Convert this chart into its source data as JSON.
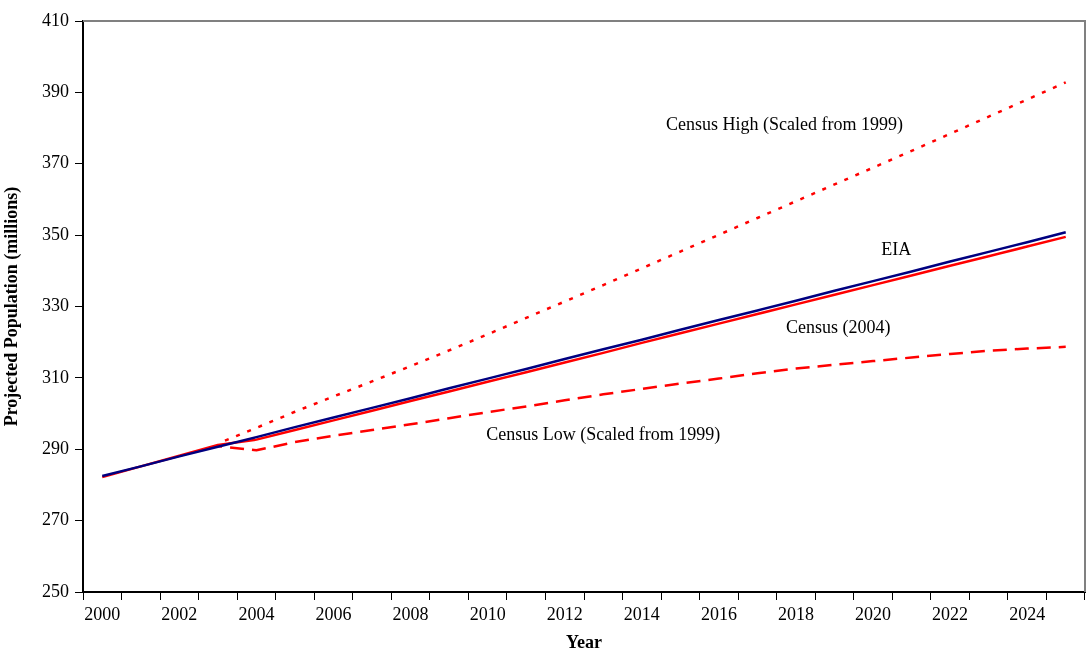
{
  "chart_data": {
    "type": "line",
    "xlabel": "Year",
    "ylabel": "Projected Population (millions)",
    "categories": [
      "2000",
      null,
      "2002",
      null,
      "2004",
      null,
      "2006",
      null,
      "2008",
      null,
      "2010",
      null,
      "2012",
      null,
      "2014",
      null,
      "2016",
      null,
      "2018",
      null,
      "2020",
      null,
      "2022",
      null,
      "2024",
      null
    ],
    "series": [
      {
        "name": "Census High (Scaled from 1999)",
        "color": "#ff0000",
        "line_style": "dotted",
        "values": [
          null,
          null,
          null,
          291.6,
          296.0,
          300.5,
          304.8,
          309.0,
          313.3,
          317.7,
          322.2,
          326.8,
          331.4,
          336.0,
          340.7,
          345.4,
          350.1,
          354.8,
          359.5,
          364.2,
          368.9,
          373.6,
          378.4,
          383.2,
          388.0,
          392.8
        ]
      },
      {
        "name": "EIA",
        "color": "#000080",
        "line_style": "solid",
        "values": [
          282.5,
          285.2,
          288.0,
          290.7,
          293.4,
          296.2,
          298.9,
          301.6,
          304.3,
          307.1,
          309.8,
          312.5,
          315.3,
          318.0,
          320.7,
          323.5,
          326.2,
          328.9,
          331.6,
          334.4,
          337.1,
          339.8,
          342.6,
          345.3,
          348.0,
          350.8
        ]
      },
      {
        "name": "Census (2004)",
        "color": "#ff0000",
        "line_style": "solid",
        "values": [
          282.2,
          285.2,
          288.2,
          291.2,
          292.7,
          295.4,
          298.1,
          300.8,
          303.5,
          306.2,
          308.9,
          311.6,
          314.3,
          317.0,
          319.8,
          322.5,
          325.2,
          327.9,
          330.6,
          333.3,
          336.0,
          338.7,
          341.4,
          344.1,
          346.8,
          349.5
        ]
      },
      {
        "name": "Census Low (Scaled from 1999)",
        "color": "#ff0000",
        "line_style": "dashed",
        "values": [
          null,
          null,
          null,
          290.9,
          289.7,
          292.0,
          293.8,
          295.4,
          297.0,
          298.7,
          300.4,
          302.0,
          303.7,
          305.4,
          306.9,
          308.4,
          309.8,
          311.3,
          312.6,
          313.7,
          314.7,
          315.7,
          316.7,
          317.6,
          318.2,
          318.7
        ]
      }
    ],
    "ylim": [
      250,
      410
    ],
    "yticks": [
      250,
      270,
      290,
      310,
      330,
      350,
      370,
      390,
      410
    ],
    "grid": false,
    "legend": false,
    "marker": "none"
  }
}
